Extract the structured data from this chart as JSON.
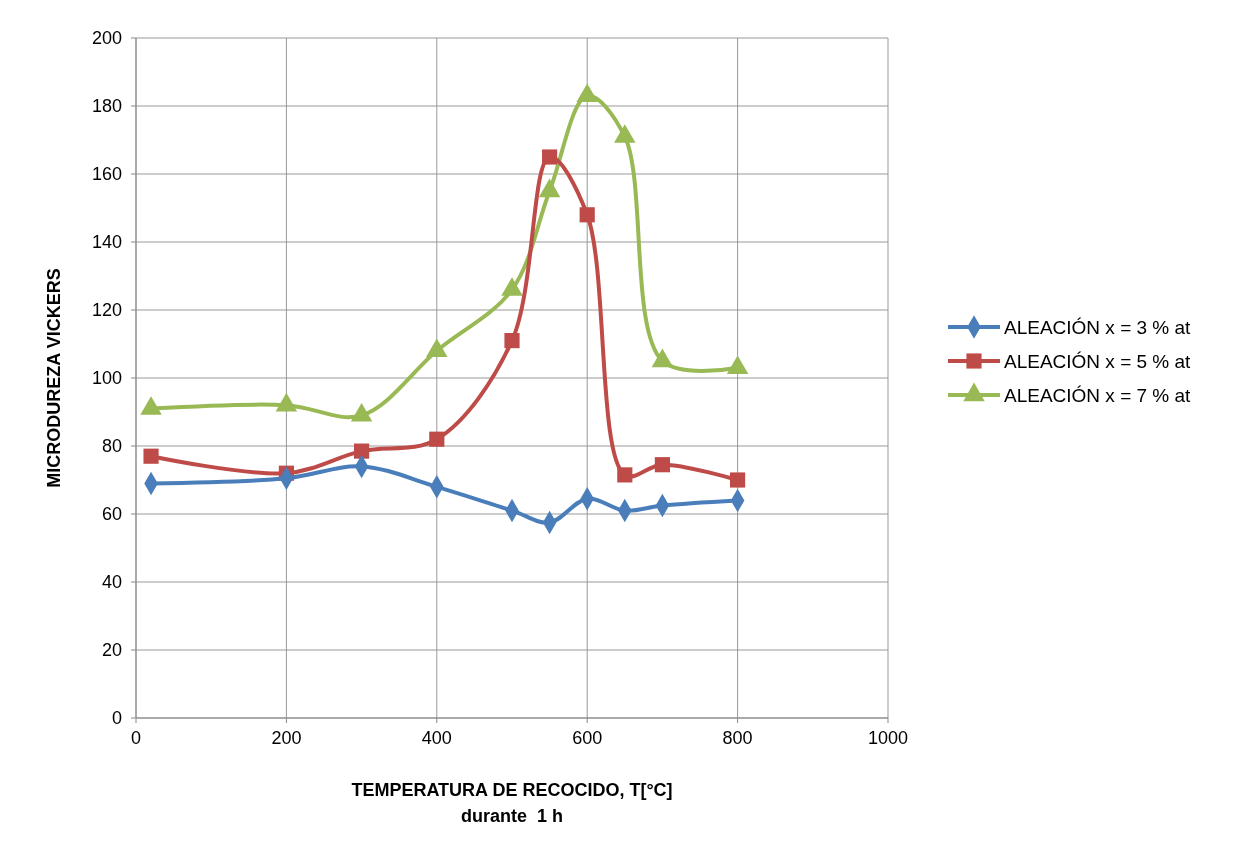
{
  "chart_data": {
    "type": "line",
    "xlabel": "TEMPERATURA DE RECOCIDO, T[°C]\ndurante  1 h",
    "ylabel": "MICRODUREZA VICKERS",
    "x": [
      20,
      200,
      300,
      400,
      500,
      550,
      600,
      650,
      700,
      800
    ],
    "series": [
      {
        "name": "ALEACIÓN x = 3 % at",
        "color": "#4a7ebb",
        "marker": "diamond",
        "values": [
          69,
          70.5,
          74,
          68,
          61,
          57.5,
          64.5,
          61,
          62.5,
          64
        ]
      },
      {
        "name": "ALEACIÓN x = 5 % at",
        "color": "#be4b48",
        "marker": "square",
        "values": [
          77,
          72,
          78.5,
          82,
          111,
          165,
          148,
          71.5,
          74.5,
          70
        ]
      },
      {
        "name": "ALEACIÓN x = 7 % at",
        "color": "#98b954",
        "marker": "triangle",
        "values": [
          91,
          92,
          89,
          108,
          126,
          155,
          183,
          171,
          105,
          103
        ]
      }
    ],
    "xlim": [
      0,
      1000
    ],
    "xticks": [
      0,
      200,
      400,
      600,
      800,
      1000
    ],
    "ylim": [
      0,
      200
    ],
    "yticks": [
      0,
      20,
      40,
      60,
      80,
      100,
      120,
      140,
      160,
      180,
      200
    ],
    "grid": true,
    "legend": "right"
  }
}
